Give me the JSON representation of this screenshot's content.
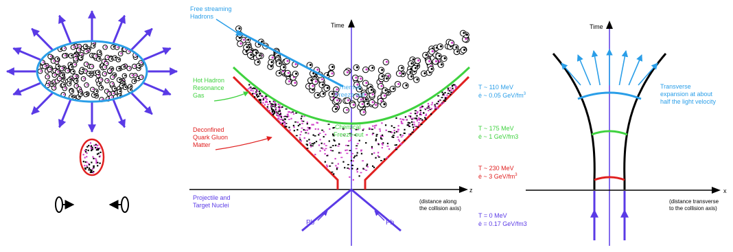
{
  "colors": {
    "blue": "#2a9ee8",
    "green": "#3fd23f",
    "red": "#e02020",
    "violet": "#5a3ae6",
    "black": "#000000",
    "magenta": "#d040c8"
  },
  "center_panel": {
    "axis_time": "Time",
    "axis_z": "z",
    "z_caption": [
      "(distance along",
      "the collision axis)"
    ],
    "free_streaming": [
      "Free streaming",
      "Hadrons"
    ],
    "thermal_freeze_out": [
      "Thermal",
      "Freeze-out"
    ],
    "hot_hadron": [
      "Hot Hadron",
      "Resonance",
      "Gas"
    ],
    "chemical_freeze_out": [
      "Chemical",
      "Freeze-out"
    ],
    "deconfined": [
      "Deconfined",
      "Quark Gluon",
      "Matter"
    ],
    "projectile": [
      "Projectile and",
      "Target Nuclei"
    ],
    "pb_left": "Pb",
    "pb_right": "Pb"
  },
  "conditions": [
    {
      "T": "T ~ 110 MeV",
      "e_sym": "ė",
      "e_val": " ~ 0.05 GeV/fm",
      "e_exp": "3",
      "color": "#2a9ee8"
    },
    {
      "T": "T ~ 175 MeV",
      "e_sym": "ė",
      "e_val": " ~ 1 GeV/fm3",
      "e_exp": "",
      "color": "#3fd23f"
    },
    {
      "T": "T ~ 230 MeV",
      "e_sym": "ė",
      "e_val": " ~ 3 GeV/fm",
      "e_exp": "3",
      "color": "#e02020"
    },
    {
      "T": "T = 0 MeV",
      "e_sym": "ė",
      "e_val": " = 0.17 GeV/fm3",
      "e_exp": "",
      "color": "#5a3ae6"
    }
  ],
  "right_panel": {
    "axis_time": "Time",
    "axis_x": "x",
    "transverse": [
      "Transverse",
      "expansion at about",
      "half the light velocity"
    ],
    "x_caption": [
      "(distance transverse",
      "to the collision axis)"
    ]
  }
}
